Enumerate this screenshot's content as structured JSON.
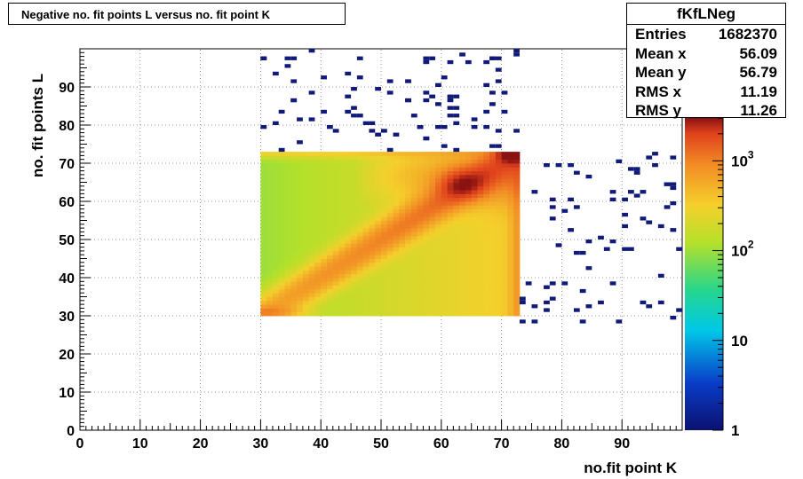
{
  "title": "Negative no. fit points L versus no. fit point K",
  "stats": {
    "name": "fKfLNeg",
    "rows": [
      {
        "label": "Entries",
        "value": "1682370"
      },
      {
        "label": "Mean x",
        "value": "56.09"
      },
      {
        "label": "Mean y",
        "value": "56.79"
      },
      {
        "label": "RMS x",
        "value": "11.19"
      },
      {
        "label": "RMS y",
        "value": "11.26"
      }
    ]
  },
  "chart_data": {
    "type": "heatmap",
    "xlabel": "no.fit point K",
    "ylabel": "no. fit points  L",
    "xlim": [
      0,
      100
    ],
    "ylim": [
      0,
      100
    ],
    "x_ticks": [
      0,
      10,
      20,
      30,
      40,
      50,
      60,
      70,
      80,
      90
    ],
    "y_ticks": [
      0,
      10,
      20,
      30,
      40,
      50,
      60,
      70,
      80,
      90
    ],
    "grid": true,
    "z_scale": "log",
    "zlim": [
      1,
      3000
    ],
    "z_ticks": [
      "1",
      "10",
      "10^2",
      "10^3"
    ],
    "dense_region": {
      "x": [
        30,
        73
      ],
      "y": [
        30,
        73
      ],
      "z_min": 100,
      "z_max": 3000
    },
    "sparse_entries_z": 1,
    "colors": {
      "low": "#1a237e",
      "mid_low": "#00c8e8",
      "mid": "#9ee63a",
      "mid_high": "#f3a32a",
      "high": "#8a1212"
    }
  }
}
